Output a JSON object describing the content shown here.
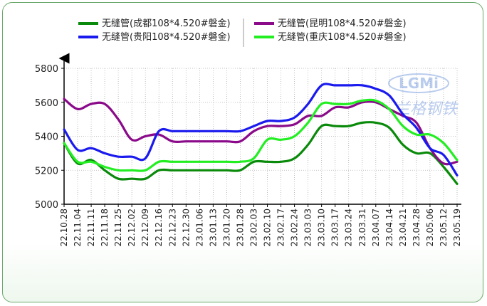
{
  "colors": {
    "chengdu": "#0a8a0a",
    "kunming": "#8a0a8a",
    "guiyang": "#1a1aee",
    "chongqing": "#22ee22",
    "axis": "#000000",
    "grid": "#b0b0b0",
    "frame": "#6aa86a"
  },
  "watermark": {
    "text": "LGMi",
    "subtext": "兰格钢铁"
  },
  "chart_data": {
    "type": "line",
    "title": "",
    "xlabel": "",
    "ylabel": "",
    "ylim": [
      5000,
      5800
    ],
    "yticks": [
      5000,
      5200,
      5400,
      5600,
      5800
    ],
    "grid": true,
    "legend_position": "top",
    "categories": [
      "22.10.28",
      "22.11.04",
      "22.11.11",
      "22.11.18",
      "22.11.25",
      "22.12.02",
      "22.12.09",
      "22.12.16",
      "22.12.23",
      "22.12.30",
      "23.01.06",
      "23.01.13",
      "23.01.20",
      "23.01.28",
      "23.02.03",
      "23.02.10",
      "23.02.17",
      "23.02.24",
      "23.03.03",
      "23.03.10",
      "23.03.17",
      "23.03.24",
      "23.03.31",
      "23.04.07",
      "23.04.14",
      "23.04.21",
      "23.04.28",
      "23.05.06",
      "23.05.12",
      "23.05.19"
    ],
    "series": [
      {
        "key": "chengdu",
        "name": "无缝管(成都108*4.520#磐金)",
        "values": [
          5360,
          5240,
          5260,
          5200,
          5150,
          5150,
          5150,
          5200,
          5200,
          5200,
          5200,
          5200,
          5200,
          5200,
          5250,
          5250,
          5250,
          5270,
          5350,
          5460,
          5460,
          5460,
          5480,
          5480,
          5450,
          5350,
          5300,
          5300,
          5220,
          5120
        ]
      },
      {
        "key": "kunming",
        "name": "无缝管(昆明108*4.520#磐金)",
        "values": [
          5620,
          5560,
          5590,
          5590,
          5500,
          5380,
          5400,
          5410,
          5370,
          5370,
          5370,
          5370,
          5370,
          5370,
          5430,
          5460,
          5460,
          5470,
          5520,
          5520,
          5570,
          5570,
          5600,
          5600,
          5560,
          5520,
          5480,
          5330,
          5240,
          5250
        ]
      },
      {
        "key": "guiyang",
        "name": "无缝管(贵阳108*4.520#磐金)",
        "values": [
          5440,
          5320,
          5330,
          5300,
          5280,
          5280,
          5270,
          5430,
          5430,
          5430,
          5430,
          5430,
          5430,
          5430,
          5460,
          5490,
          5490,
          5510,
          5590,
          5700,
          5700,
          5700,
          5700,
          5680,
          5640,
          5530,
          5450,
          5330,
          5290,
          5170
        ]
      },
      {
        "key": "chongqing",
        "name": "无缝管(重庆108*4.520#磐金)",
        "values": [
          5360,
          5250,
          5250,
          5220,
          5200,
          5200,
          5200,
          5250,
          5250,
          5250,
          5250,
          5250,
          5250,
          5250,
          5270,
          5380,
          5380,
          5400,
          5480,
          5590,
          5590,
          5590,
          5610,
          5610,
          5560,
          5460,
          5410,
          5410,
          5360,
          5260
        ]
      }
    ]
  }
}
